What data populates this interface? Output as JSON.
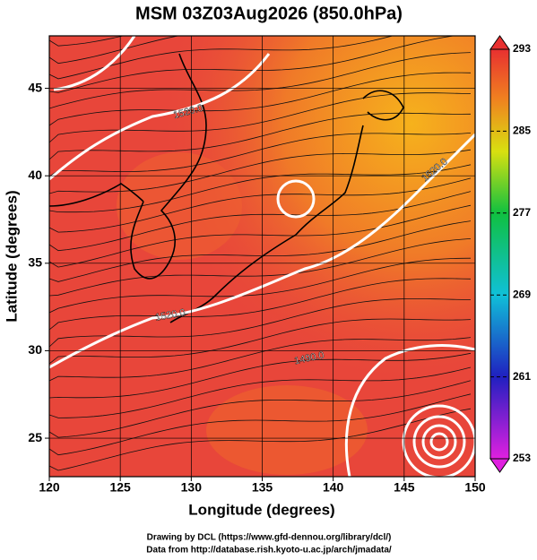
{
  "chart_data": {
    "type": "map",
    "title": "MSM 03Z03Aug2026 (850.0hPa)",
    "x_label": "Longitude (degrees)",
    "y_label": "Latitude  (degrees)",
    "xlim": [
      120,
      150
    ],
    "xticks": [
      120,
      125,
      130,
      135,
      140,
      145,
      150
    ],
    "ylim": [
      22.8,
      48
    ],
    "yticks": [
      25,
      30,
      35,
      40,
      45
    ],
    "grid": true,
    "colorbar": {
      "lim": [
        253,
        293
      ],
      "ticks": [
        253,
        261,
        269,
        277,
        285,
        293
      ]
    },
    "contour_labels": [
      "1520.0",
      "1520.0",
      "1520.0",
      "1490.0"
    ]
  },
  "footer": [
    "Drawing by DCL (https://www.gfd-dennou.org/library/dcl/)",
    "Data from http://database.rish.kyoto-u.ac.jp/arch/jmadata/"
  ]
}
